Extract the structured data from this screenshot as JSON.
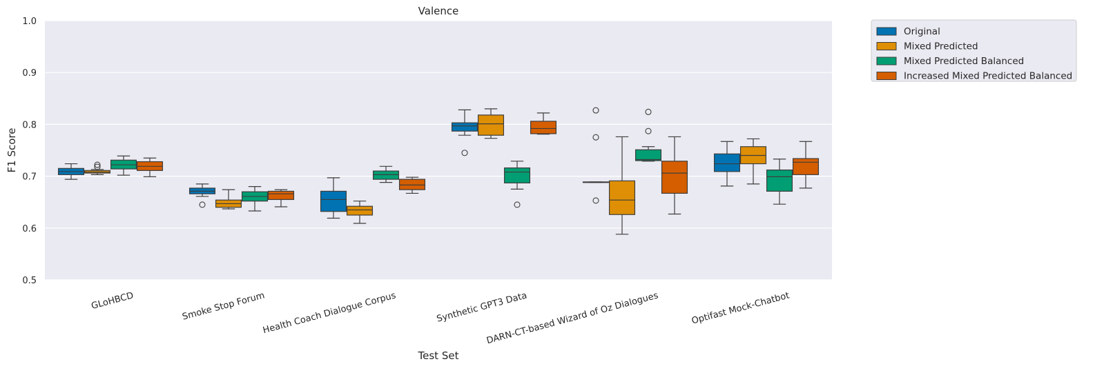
{
  "chart_data": {
    "type": "box",
    "title": "Valence",
    "xlabel": "Test Set",
    "ylabel": "F1 Score",
    "ylim": [
      0.5,
      1.0
    ],
    "yticks": [
      "0.5",
      "0.6",
      "0.7",
      "0.8",
      "0.9",
      "1.0"
    ],
    "grid": true,
    "legend_position": "outside-top-right",
    "categories": [
      "GLoHBCD",
      "Smoke Stop Forum",
      "Health Coach Dialogue Corpus",
      "Synthetic GPT3 Data",
      "DARN-CT-based Wizard of Oz Dialogues",
      "Optifast Mock-Chatbot"
    ],
    "series": [
      {
        "name": "Original",
        "color": "#0173b2",
        "boxes": [
          {
            "whislo": 0.694,
            "q1": 0.703,
            "med": 0.709,
            "q3": 0.715,
            "whishi": 0.724,
            "fliers": []
          },
          {
            "whislo": 0.661,
            "q1": 0.666,
            "med": 0.671,
            "q3": 0.677,
            "whishi": 0.685,
            "fliers": [
              0.645
            ]
          },
          {
            "whislo": 0.619,
            "q1": 0.632,
            "med": 0.655,
            "q3": 0.671,
            "whishi": 0.697,
            "fliers": []
          },
          {
            "whislo": 0.779,
            "q1": 0.787,
            "med": 0.797,
            "q3": 0.803,
            "whishi": 0.828,
            "fliers": [
              0.745
            ]
          },
          {
            "whislo": 0.688,
            "q1": 0.688,
            "med": 0.688,
            "q3": 0.689,
            "whishi": 0.689,
            "fliers": [
              0.827,
              0.775,
              0.653
            ]
          },
          {
            "whislo": 0.681,
            "q1": 0.709,
            "med": 0.724,
            "q3": 0.743,
            "whishi": 0.767,
            "fliers": []
          }
        ]
      },
      {
        "name": "Mixed Predicted",
        "color": "#de8f05",
        "boxes": [
          {
            "whislo": 0.703,
            "q1": 0.706,
            "med": 0.708,
            "q3": 0.711,
            "whishi": 0.713,
            "fliers": [
              0.722,
              0.718
            ]
          },
          {
            "whislo": 0.637,
            "q1": 0.64,
            "med": 0.647,
            "q3": 0.654,
            "whishi": 0.674,
            "fliers": []
          },
          {
            "whislo": 0.609,
            "q1": 0.625,
            "med": 0.635,
            "q3": 0.642,
            "whishi": 0.652,
            "fliers": []
          },
          {
            "whislo": 0.773,
            "q1": 0.779,
            "med": 0.801,
            "q3": 0.818,
            "whishi": 0.83,
            "fliers": []
          },
          {
            "whislo": 0.588,
            "q1": 0.626,
            "med": 0.654,
            "q3": 0.691,
            "whishi": 0.776,
            "fliers": []
          },
          {
            "whislo": 0.685,
            "q1": 0.724,
            "med": 0.74,
            "q3": 0.757,
            "whishi": 0.772,
            "fliers": []
          }
        ]
      },
      {
        "name": "Mixed Predicted Balanced",
        "color": "#029e73",
        "boxes": [
          {
            "whislo": 0.702,
            "q1": 0.714,
            "med": 0.722,
            "q3": 0.731,
            "whishi": 0.739,
            "fliers": []
          },
          {
            "whislo": 0.633,
            "q1": 0.652,
            "med": 0.661,
            "q3": 0.67,
            "whishi": 0.68,
            "fliers": []
          },
          {
            "whislo": 0.688,
            "q1": 0.694,
            "med": 0.703,
            "q3": 0.71,
            "whishi": 0.719,
            "fliers": []
          },
          {
            "whislo": 0.675,
            "q1": 0.687,
            "med": 0.708,
            "q3": 0.716,
            "whishi": 0.729,
            "fliers": [
              0.645
            ]
          },
          {
            "whislo": 0.729,
            "q1": 0.73,
            "med": 0.732,
            "q3": 0.751,
            "whishi": 0.757,
            "fliers": [
              0.824,
              0.787
            ]
          },
          {
            "whislo": 0.646,
            "q1": 0.671,
            "med": 0.699,
            "q3": 0.712,
            "whishi": 0.733,
            "fliers": []
          }
        ]
      },
      {
        "name": "Increased Mixed Predicted Balanced",
        "color": "#d55e00",
        "boxes": [
          {
            "whislo": 0.699,
            "q1": 0.711,
            "med": 0.719,
            "q3": 0.728,
            "whishi": 0.735,
            "fliers": []
          },
          {
            "whislo": 0.641,
            "q1": 0.655,
            "med": 0.666,
            "q3": 0.671,
            "whishi": 0.674,
            "fliers": []
          },
          {
            "whislo": 0.667,
            "q1": 0.674,
            "med": 0.683,
            "q3": 0.694,
            "whishi": 0.698,
            "fliers": []
          },
          {
            "whislo": 0.781,
            "q1": 0.782,
            "med": 0.792,
            "q3": 0.806,
            "whishi": 0.822,
            "fliers": []
          },
          {
            "whislo": 0.627,
            "q1": 0.667,
            "med": 0.706,
            "q3": 0.729,
            "whishi": 0.776,
            "fliers": []
          },
          {
            "whislo": 0.677,
            "q1": 0.703,
            "med": 0.727,
            "q3": 0.734,
            "whishi": 0.767,
            "fliers": []
          }
        ]
      }
    ]
  }
}
